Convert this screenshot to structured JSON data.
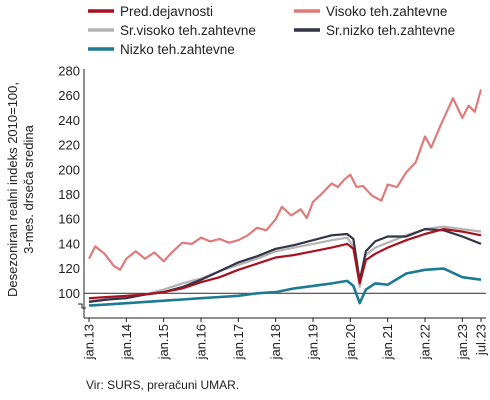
{
  "chart_data": {
    "type": "line",
    "ylabel": [
      "Desezoniran realni indeks 2010=100,",
      "3-mes. drseča sredina"
    ],
    "ylim": [
      80,
      280
    ],
    "yticks": [
      100,
      120,
      140,
      160,
      180,
      200,
      220,
      240,
      260,
      280
    ],
    "reference_line": 100,
    "x_range": [
      "2013-01",
      "2023-07"
    ],
    "xticks": [
      "jan.13",
      "jan.14",
      "jan.15",
      "jan.16",
      "jan.17",
      "jan.18",
      "jan.19",
      "jan.20",
      "jan.21",
      "jan.22",
      "jan.23",
      "jul.23"
    ],
    "source": "Vir: SURS, preračuni UMAR.",
    "series": [
      {
        "name": "Pred.dejavnosti",
        "color": "#a8111e",
        "points": [
          [
            "2013-01",
            96
          ],
          [
            "2013-07",
            97
          ],
          [
            "2014-01",
            98
          ],
          [
            "2014-07",
            99
          ],
          [
            "2015-01",
            101
          ],
          [
            "2015-07",
            104
          ],
          [
            "2016-01",
            109
          ],
          [
            "2016-07",
            113
          ],
          [
            "2017-01",
            119
          ],
          [
            "2017-07",
            124
          ],
          [
            "2018-01",
            129
          ],
          [
            "2018-07",
            131
          ],
          [
            "2019-01",
            134
          ],
          [
            "2019-07",
            137
          ],
          [
            "2019-12",
            140
          ],
          [
            "2020-02",
            136
          ],
          [
            "2020-04",
            108
          ],
          [
            "2020-06",
            127
          ],
          [
            "2020-09",
            132
          ],
          [
            "2021-01",
            137
          ],
          [
            "2021-07",
            143
          ],
          [
            "2022-01",
            148
          ],
          [
            "2022-07",
            152
          ],
          [
            "2023-01",
            150
          ],
          [
            "2023-07",
            147
          ]
        ]
      },
      {
        "name": "Visoko teh.zahtevne",
        "color": "#e07a7a",
        "points": [
          [
            "2013-01",
            128
          ],
          [
            "2013-03",
            138
          ],
          [
            "2013-06",
            132
          ],
          [
            "2013-09",
            122
          ],
          [
            "2013-11",
            119
          ],
          [
            "2014-01",
            128
          ],
          [
            "2014-04",
            134
          ],
          [
            "2014-07",
            128
          ],
          [
            "2014-10",
            133
          ],
          [
            "2015-01",
            126
          ],
          [
            "2015-04",
            134
          ],
          [
            "2015-07",
            141
          ],
          [
            "2015-10",
            140
          ],
          [
            "2016-01",
            145
          ],
          [
            "2016-04",
            142
          ],
          [
            "2016-07",
            144
          ],
          [
            "2016-10",
            141
          ],
          [
            "2017-01",
            143
          ],
          [
            "2017-04",
            147
          ],
          [
            "2017-07",
            153
          ],
          [
            "2017-10",
            151
          ],
          [
            "2018-01",
            160
          ],
          [
            "2018-03",
            170
          ],
          [
            "2018-06",
            163
          ],
          [
            "2018-09",
            168
          ],
          [
            "2018-11",
            161
          ],
          [
            "2019-01",
            174
          ],
          [
            "2019-04",
            181
          ],
          [
            "2019-07",
            189
          ],
          [
            "2019-09",
            186
          ],
          [
            "2019-11",
            192
          ],
          [
            "2020-01",
            196
          ],
          [
            "2020-03",
            186
          ],
          [
            "2020-05",
            187
          ],
          [
            "2020-08",
            179
          ],
          [
            "2020-11",
            175
          ],
          [
            "2021-01",
            188
          ],
          [
            "2021-04",
            186
          ],
          [
            "2021-07",
            198
          ],
          [
            "2021-10",
            206
          ],
          [
            "2022-01",
            227
          ],
          [
            "2022-03",
            218
          ],
          [
            "2022-06",
            236
          ],
          [
            "2022-10",
            258
          ],
          [
            "2023-01",
            242
          ],
          [
            "2023-03",
            252
          ],
          [
            "2023-05",
            247
          ],
          [
            "2023-07",
            265
          ]
        ]
      },
      {
        "name": "Sr.visoko teh.zahtevne",
        "color": "#b3b3b3",
        "points": [
          [
            "2013-01",
            94
          ],
          [
            "2013-07",
            95
          ],
          [
            "2014-01",
            97
          ],
          [
            "2014-07",
            99
          ],
          [
            "2015-01",
            103
          ],
          [
            "2015-07",
            108
          ],
          [
            "2016-01",
            112
          ],
          [
            "2016-07",
            118
          ],
          [
            "2017-01",
            123
          ],
          [
            "2017-07",
            128
          ],
          [
            "2018-01",
            134
          ],
          [
            "2018-07",
            137
          ],
          [
            "2019-01",
            140
          ],
          [
            "2019-07",
            143
          ],
          [
            "2019-12",
            145
          ],
          [
            "2020-02",
            138
          ],
          [
            "2020-04",
            105
          ],
          [
            "2020-06",
            131
          ],
          [
            "2020-09",
            137
          ],
          [
            "2021-01",
            141
          ],
          [
            "2021-07",
            147
          ],
          [
            "2022-01",
            152
          ],
          [
            "2022-07",
            154
          ],
          [
            "2023-01",
            152
          ],
          [
            "2023-07",
            150
          ]
        ]
      },
      {
        "name": "Sr.nizko teh.zahtevne",
        "color": "#323447",
        "points": [
          [
            "2013-01",
            93
          ],
          [
            "2013-07",
            95
          ],
          [
            "2014-01",
            96
          ],
          [
            "2014-07",
            99
          ],
          [
            "2015-01",
            101
          ],
          [
            "2015-07",
            105
          ],
          [
            "2016-01",
            111
          ],
          [
            "2016-07",
            118
          ],
          [
            "2017-01",
            125
          ],
          [
            "2017-07",
            130
          ],
          [
            "2018-01",
            136
          ],
          [
            "2018-07",
            139
          ],
          [
            "2019-01",
            143
          ],
          [
            "2019-07",
            147
          ],
          [
            "2019-12",
            148
          ],
          [
            "2020-02",
            144
          ],
          [
            "2020-04",
            110
          ],
          [
            "2020-06",
            134
          ],
          [
            "2020-09",
            142
          ],
          [
            "2021-01",
            146
          ],
          [
            "2021-07",
            146
          ],
          [
            "2022-01",
            152
          ],
          [
            "2022-07",
            151
          ],
          [
            "2023-01",
            146
          ],
          [
            "2023-07",
            140
          ]
        ]
      },
      {
        "name": "Nizko teh.zahtevne",
        "color": "#1d7a93",
        "points": [
          [
            "2013-01",
            90
          ],
          [
            "2013-07",
            91
          ],
          [
            "2014-01",
            92
          ],
          [
            "2014-07",
            93
          ],
          [
            "2015-01",
            94
          ],
          [
            "2015-07",
            95
          ],
          [
            "2016-01",
            96
          ],
          [
            "2016-07",
            97
          ],
          [
            "2017-01",
            98
          ],
          [
            "2017-07",
            100
          ],
          [
            "2018-01",
            101
          ],
          [
            "2018-07",
            104
          ],
          [
            "2019-01",
            106
          ],
          [
            "2019-07",
            108
          ],
          [
            "2019-12",
            110
          ],
          [
            "2020-02",
            106
          ],
          [
            "2020-04",
            92
          ],
          [
            "2020-06",
            103
          ],
          [
            "2020-09",
            108
          ],
          [
            "2021-01",
            107
          ],
          [
            "2021-07",
            116
          ],
          [
            "2022-01",
            119
          ],
          [
            "2022-07",
            120
          ],
          [
            "2023-01",
            113
          ],
          [
            "2023-07",
            111
          ]
        ]
      }
    ]
  }
}
